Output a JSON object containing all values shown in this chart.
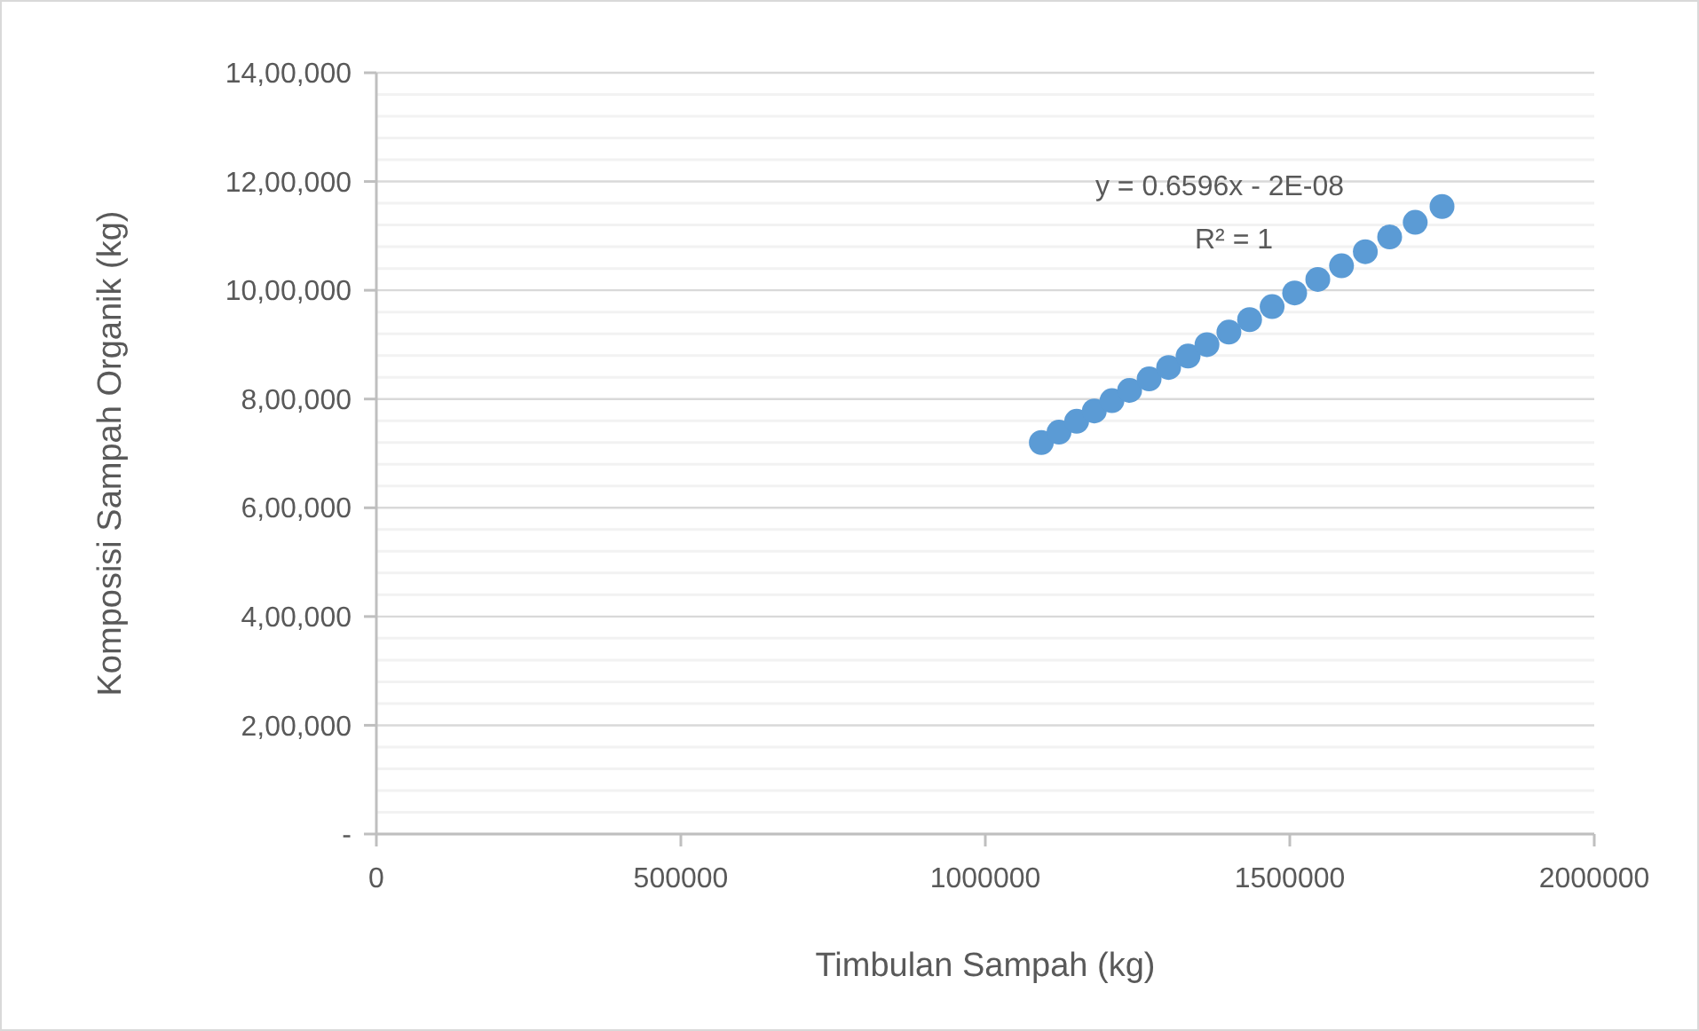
{
  "chart_data": {
    "type": "scatter",
    "xlabel": "Timbulan Sampah (kg)",
    "ylabel": "Komposisi Sampah Organik (kg)",
    "x": [
      1092000,
      1121000,
      1150000,
      1179000,
      1208000,
      1237000,
      1269000,
      1301000,
      1333000,
      1364000,
      1400000,
      1434000,
      1471000,
      1508000,
      1546000,
      1585000,
      1624000,
      1664000,
      1706000,
      1750000
    ],
    "series": [
      {
        "color": "#5b9bd5",
        "values": [
          720000,
          739000,
          759000,
          778000,
          797000,
          816000,
          837000,
          858000,
          879000,
          900000,
          923000,
          946000,
          970000,
          995000,
          1020000,
          1045000,
          1071000,
          1098000,
          1125000,
          1154000
        ]
      }
    ],
    "xlim": [
      0,
      2000000
    ],
    "xticks": [
      0,
      500000,
      1000000,
      1500000,
      2000000
    ],
    "ylim": [
      0,
      1400000
    ],
    "yticks": [
      {
        "value": 0,
        "label": "-"
      },
      {
        "value": 200000,
        "label": "2,00,000"
      },
      {
        "value": 400000,
        "label": "4,00,000"
      },
      {
        "value": 600000,
        "label": "6,00,000"
      },
      {
        "value": 800000,
        "label": "8,00,000"
      },
      {
        "value": 1000000,
        "label": "10,00,000"
      },
      {
        "value": 1200000,
        "label": "12,00,000"
      },
      {
        "value": 1400000,
        "label": "14,00,000"
      }
    ],
    "grid": "y",
    "marker": "circle",
    "annotations": [
      "y = 0.6596x - 2E-08",
      "R² = 1"
    ]
  }
}
